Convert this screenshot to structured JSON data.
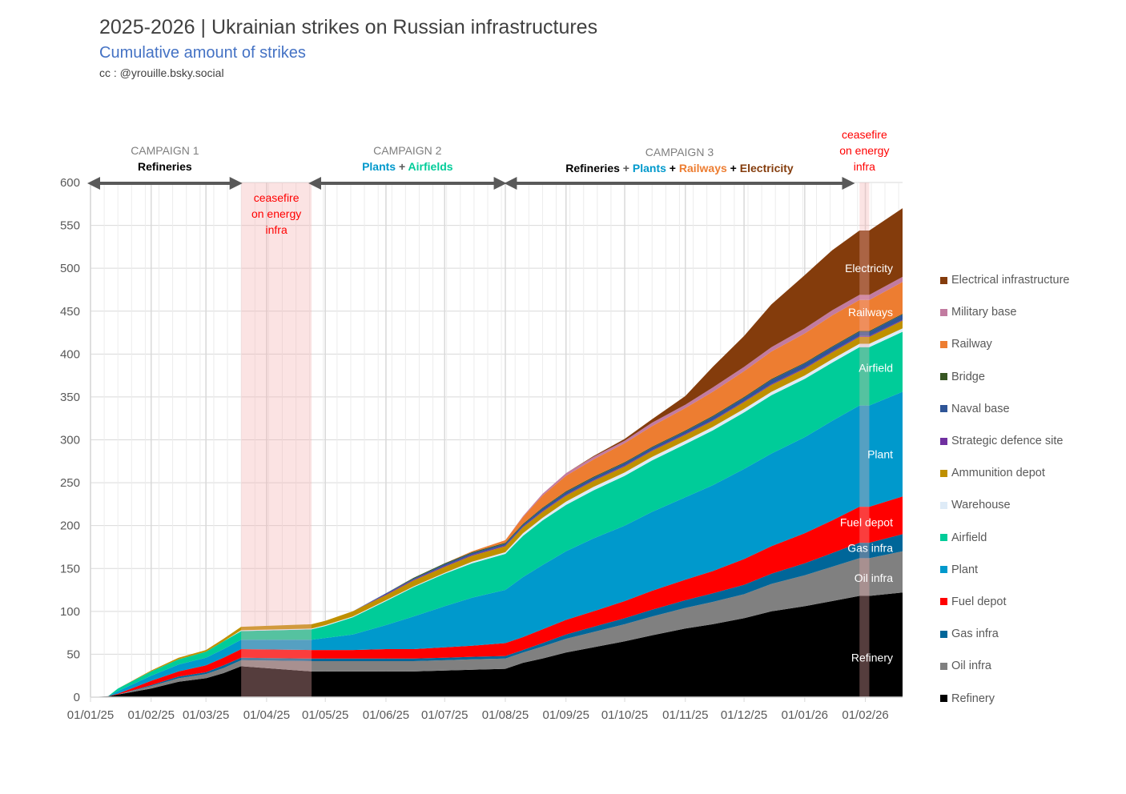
{
  "header": {
    "title": "2025-2026 | Ukrainian strikes on Russian infrastructures",
    "subtitle": "Cumulative amount of strikes",
    "credit": "cc : @yrouille.bsky.social"
  },
  "annotations": {
    "campaigns": [
      {
        "name": "CAMPAIGN 1",
        "start": "2025-01-01",
        "end": "2025-03-18",
        "desc": [
          {
            "text": "Refineries",
            "color": "#000000"
          }
        ]
      },
      {
        "name": "CAMPAIGN 2",
        "start": "2025-04-24",
        "end": "2025-07-31",
        "desc": [
          {
            "text": "Plants",
            "color": "#0099cc"
          },
          {
            "text": " + ",
            "color": "#595959"
          },
          {
            "text": "Airfields",
            "color": "#00cc99"
          }
        ]
      },
      {
        "name": "CAMPAIGN 3",
        "start": "2025-08-02",
        "end": "2026-01-25",
        "desc": [
          {
            "text": "Refineries",
            "color": "#000000"
          },
          {
            "text": " + ",
            "color": "#595959"
          },
          {
            "text": "Plants",
            "color": "#0099cc"
          },
          {
            "text": " + ",
            "color": "#000000"
          },
          {
            "text": "Railways",
            "color": "#ed7d31"
          },
          {
            "text": " + ",
            "color": "#000000"
          },
          {
            "text": "Electricity",
            "color": "#843c0c"
          }
        ]
      }
    ],
    "ceasefires": [
      {
        "label": [
          "ceasefire",
          "on energy",
          "infra"
        ],
        "start": "2025-03-19",
        "end": "2025-04-24",
        "label_position": "inside"
      },
      {
        "label": [
          "ceasefire",
          "on energy",
          "infra"
        ],
        "start": "2026-01-29",
        "end": "2026-02-03",
        "label_position": "above"
      }
    ],
    "area_labels": [
      {
        "text": "Electricity",
        "series": "Electrical infrastructure",
        "y": 500
      },
      {
        "text": "Railways",
        "series": "Railway",
        "y": 449
      },
      {
        "text": "Airfield",
        "series": "Airfield",
        "y": 384
      },
      {
        "text": "Plant",
        "series": "Plant",
        "y": 283
      },
      {
        "text": "Fuel depot",
        "series": "Fuel depot",
        "y": 204
      },
      {
        "text": "Gas infra",
        "series": "Gas infra",
        "y": 174
      },
      {
        "text": "Oil infra",
        "series": "Oil infra",
        "y": 139
      },
      {
        "text": "Refinery",
        "series": "Refinery",
        "y": 46
      }
    ]
  },
  "chart_data": {
    "type": "area",
    "stacked": true,
    "title": "2025-2026 | Ukrainian strikes on Russian infrastructures",
    "subtitle": "Cumulative amount of strikes",
    "xlabel": "",
    "ylabel": "",
    "ylim": [
      0,
      600
    ],
    "yticks": [
      0,
      50,
      100,
      150,
      200,
      250,
      300,
      350,
      400,
      450,
      500,
      550,
      600
    ],
    "xlim": [
      "2025-01-01",
      "2026-02-20"
    ],
    "xticks": [
      "01/01/25",
      "01/02/25",
      "01/03/25",
      "01/04/25",
      "01/05/25",
      "01/06/25",
      "01/07/25",
      "01/08/25",
      "01/09/25",
      "01/10/25",
      "01/11/25",
      "01/12/25",
      "01/01/26",
      "01/02/26"
    ],
    "grid": true,
    "legend_position": "right",
    "x": [
      "2025-01-01",
      "2025-01-10",
      "2025-01-15",
      "2025-02-01",
      "2025-02-15",
      "2025-03-01",
      "2025-03-10",
      "2025-03-19",
      "2025-04-24",
      "2025-05-01",
      "2025-05-15",
      "2025-06-01",
      "2025-06-15",
      "2025-07-01",
      "2025-07-15",
      "2025-08-01",
      "2025-08-10",
      "2025-08-20",
      "2025-09-01",
      "2025-09-15",
      "2025-10-01",
      "2025-10-15",
      "2025-11-01",
      "2025-11-15",
      "2025-12-01",
      "2025-12-15",
      "2026-01-01",
      "2026-01-15",
      "2026-01-29",
      "2026-02-03",
      "2026-02-20"
    ],
    "series": [
      {
        "name": "Refinery",
        "color": "#000000",
        "values": [
          0,
          1,
          3,
          10,
          18,
          22,
          28,
          36,
          30,
          30,
          30,
          30,
          30,
          31,
          32,
          33,
          40,
          45,
          52,
          58,
          65,
          72,
          80,
          85,
          92,
          100,
          106,
          112,
          118,
          118,
          122
        ]
      },
      {
        "name": "Oil infra",
        "color": "#808080",
        "values": [
          0,
          0,
          0,
          3,
          4,
          5,
          6,
          7,
          12,
          12,
          12,
          12,
          12,
          12,
          12,
          12,
          12,
          14,
          16,
          18,
          20,
          22,
          24,
          26,
          28,
          32,
          36,
          40,
          44,
          44,
          48
        ]
      },
      {
        "name": "Gas infra",
        "color": "#006699",
        "values": [
          0,
          0,
          0,
          1,
          2,
          2,
          3,
          3,
          3,
          3,
          3,
          3,
          3,
          3,
          3,
          3,
          3,
          4,
          5,
          6,
          7,
          8,
          9,
          10,
          11,
          12,
          14,
          16,
          18,
          18,
          20
        ]
      },
      {
        "name": "Fuel depot",
        "color": "#ff0000",
        "values": [
          0,
          0,
          1,
          5,
          6,
          8,
          9,
          10,
          10,
          10,
          10,
          11,
          11,
          12,
          13,
          15,
          15,
          16,
          17,
          18,
          20,
          22,
          24,
          26,
          30,
          32,
          35,
          38,
          42,
          42,
          44
        ]
      },
      {
        "name": "Plant",
        "color": "#0099cc",
        "values": [
          0,
          0,
          3,
          6,
          8,
          9,
          10,
          11,
          12,
          14,
          18,
          28,
          38,
          48,
          56,
          62,
          70,
          75,
          80,
          85,
          88,
          92,
          96,
          100,
          105,
          108,
          112,
          116,
          118,
          118,
          122
        ]
      },
      {
        "name": "Airfield",
        "color": "#00cc99",
        "values": [
          0,
          0,
          3,
          5,
          6,
          7,
          9,
          10,
          12,
          14,
          20,
          28,
          34,
          38,
          40,
          42,
          48,
          52,
          54,
          56,
          58,
          60,
          62,
          64,
          66,
          68,
          68,
          68,
          68,
          68,
          70
        ]
      },
      {
        "name": "Warehouse",
        "color": "#deebf7",
        "values": [
          0,
          0,
          0,
          0,
          0,
          0,
          0,
          1,
          1,
          1,
          1,
          1,
          1,
          1,
          2,
          2,
          3,
          3,
          4,
          4,
          4,
          4,
          4,
          4,
          4,
          4,
          4,
          4,
          4,
          4,
          4
        ]
      },
      {
        "name": "Ammunition depot",
        "color": "#bf9000",
        "values": [
          0,
          0,
          0,
          1,
          2,
          2,
          3,
          4,
          5,
          5,
          6,
          6,
          7,
          7,
          7,
          7,
          7,
          7,
          7,
          7,
          7,
          7,
          7,
          7,
          8,
          8,
          8,
          8,
          8,
          8,
          9
        ]
      },
      {
        "name": "Strategic defence site",
        "color": "#7030a0",
        "values": [
          0,
          0,
          0,
          0,
          0,
          0,
          0,
          0,
          0,
          0,
          0,
          1,
          1,
          1,
          1,
          1,
          1,
          1,
          1,
          1,
          1,
          1,
          1,
          1,
          1,
          1,
          1,
          1,
          1,
          1,
          1
        ]
      },
      {
        "name": "Naval base",
        "color": "#2f5597",
        "values": [
          0,
          0,
          0,
          0,
          0,
          0,
          0,
          0,
          0,
          0,
          0,
          1,
          1,
          2,
          2,
          2,
          2,
          3,
          3,
          3,
          3,
          3,
          3,
          4,
          4,
          5,
          5,
          5,
          5,
          5,
          6
        ]
      },
      {
        "name": "Bridge",
        "color": "#375623",
        "values": [
          0,
          0,
          0,
          0,
          0,
          0,
          0,
          0,
          0,
          0,
          0,
          0,
          1,
          1,
          1,
          1,
          1,
          1,
          1,
          1,
          1,
          1,
          1,
          1,
          1,
          1,
          1,
          1,
          1,
          1,
          1
        ]
      },
      {
        "name": "Railway",
        "color": "#ed7d31",
        "values": [
          0,
          0,
          0,
          0,
          0,
          0,
          0,
          0,
          0,
          0,
          0,
          0,
          0,
          0,
          1,
          3,
          8,
          14,
          18,
          20,
          22,
          24,
          26,
          28,
          30,
          32,
          34,
          36,
          36,
          36,
          37
        ]
      },
      {
        "name": "Military base",
        "color": "#c27ba0",
        "values": [
          0,
          0,
          0,
          0,
          0,
          0,
          0,
          0,
          0,
          0,
          0,
          0,
          0,
          0,
          0,
          0,
          1,
          2,
          3,
          3,
          3,
          4,
          4,
          5,
          5,
          5,
          6,
          6,
          6,
          6,
          6
        ]
      },
      {
        "name": "Electrical infrastructure",
        "color": "#843c0c",
        "values": [
          0,
          0,
          0,
          0,
          0,
          0,
          0,
          0,
          0,
          0,
          0,
          0,
          0,
          0,
          0,
          0,
          0,
          0,
          0,
          1,
          2,
          4,
          10,
          24,
          36,
          50,
          62,
          70,
          75,
          75,
          80
        ]
      }
    ]
  },
  "legend": {
    "items": [
      {
        "label": "Electrical infrastructure",
        "color": "#843c0c"
      },
      {
        "label": "Military base",
        "color": "#c27ba0"
      },
      {
        "label": "Railway",
        "color": "#ed7d31"
      },
      {
        "label": "Bridge",
        "color": "#375623"
      },
      {
        "label": "Naval base",
        "color": "#2f5597"
      },
      {
        "label": "Strategic defence site",
        "color": "#7030a0"
      },
      {
        "label": "Ammunition depot",
        "color": "#bf9000"
      },
      {
        "label": "Warehouse",
        "color": "#deebf7"
      },
      {
        "label": "Airfield",
        "color": "#00cc99"
      },
      {
        "label": "Plant",
        "color": "#0099cc"
      },
      {
        "label": "Fuel depot",
        "color": "#ff0000"
      },
      {
        "label": "Gas infra",
        "color": "#006699"
      },
      {
        "label": "Oil infra",
        "color": "#808080"
      },
      {
        "label": "Refinery",
        "color": "#000000"
      }
    ]
  }
}
